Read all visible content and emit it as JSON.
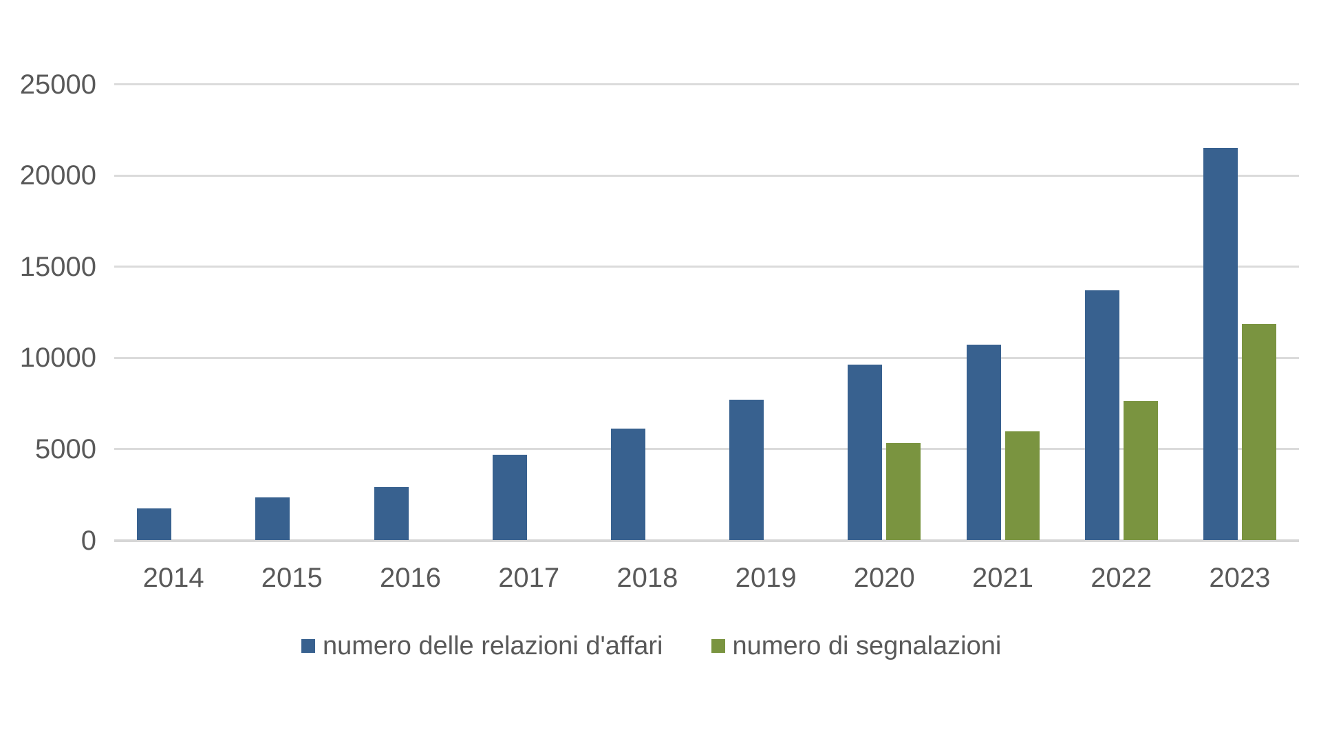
{
  "chart_data": {
    "type": "bar",
    "title": "",
    "xlabel": "",
    "ylabel": "",
    "categories": [
      "2014",
      "2015",
      "2016",
      "2017",
      "2018",
      "2019",
      "2020",
      "2021",
      "2022",
      "2023"
    ],
    "series": [
      {
        "key": "relazioni",
        "name": "numero delle relazioni d'affari",
        "color": "#38618F",
        "values": [
          1753,
          2367,
          2909,
          4684,
          6126,
          7705,
          9646,
          10739,
          13716,
          21514
        ]
      },
      {
        "key": "segnalazioni",
        "name": "numero di segnalazioni",
        "color": "#7A9440",
        "values": [
          null,
          null,
          null,
          null,
          null,
          null,
          5334,
          5964,
          7639,
          11876
        ]
      }
    ],
    "y_ticks": [
      0,
      5000,
      10000,
      15000,
      20000,
      25000
    ],
    "y_tick_labels": [
      "0",
      "5000",
      "10000",
      "15000",
      "20000",
      "25000"
    ],
    "ylim": [
      0,
      25000
    ],
    "grid": "horizontal",
    "gridline_color": "#DBDBDB",
    "axis_text_color": "#595959",
    "background_color": "#FFFFFF",
    "legend_position": "bottom"
  }
}
